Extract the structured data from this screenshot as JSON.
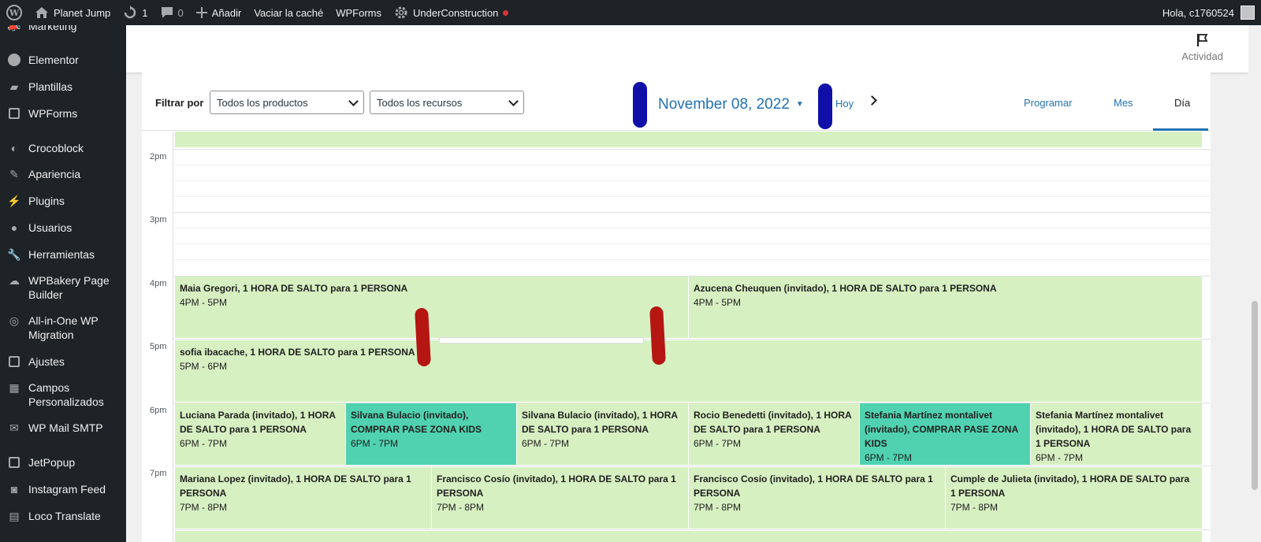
{
  "adminbar": {
    "site_name": "Planet Jump",
    "updates_count": "1",
    "comments_count": "0",
    "add_label": "Añadir",
    "clear_cache": "Vaciar la caché",
    "wpforms": "WPForms",
    "under_construction": "UnderConstruction",
    "greeting": "Hola, c1760524"
  },
  "sidebar": {
    "items": [
      {
        "label": "Marketing",
        "icon": "megaphone-icon"
      },
      {
        "label": "Elementor",
        "icon": "elementor-icon"
      },
      {
        "label": "Plantillas",
        "icon": "folder-icon"
      },
      {
        "label": "WPForms",
        "icon": "form-icon"
      },
      {
        "label": "Crocoblock",
        "icon": "crocoblock-icon"
      },
      {
        "label": "Apariencia",
        "icon": "brush-icon"
      },
      {
        "label": "Plugins",
        "icon": "plugin-icon"
      },
      {
        "label": "Usuarios",
        "icon": "user-icon"
      },
      {
        "label": "Herramientas",
        "icon": "wrench-icon"
      },
      {
        "label": "WPBakery Page Builder",
        "icon": "wpbakery-icon"
      },
      {
        "label": "All-in-One WP Migration",
        "icon": "migration-icon"
      },
      {
        "label": "Ajustes",
        "icon": "settings-icon"
      },
      {
        "label": "Campos Personalizados",
        "icon": "table-icon"
      },
      {
        "label": "WP Mail SMTP",
        "icon": "mail-icon"
      },
      {
        "label": "JetPopup",
        "icon": "jet-icon"
      },
      {
        "label": "Instagram Feed",
        "icon": "camera-icon"
      },
      {
        "label": "Loco Translate",
        "icon": "translate-icon"
      }
    ]
  },
  "topbar": {
    "activity_label": "Actividad"
  },
  "calendar": {
    "filter_label": "Filtrar por",
    "products_select": "Todos los productos",
    "resources_select": "Todos los recursos",
    "date_title": "November 08, 2022",
    "today_label": "Hoy",
    "views": [
      "Programar",
      "Mes",
      "Día"
    ],
    "active_view": "Día",
    "hours": [
      "2pm",
      "3pm",
      "4pm",
      "5pm",
      "6pm",
      "7pm"
    ],
    "events": [
      {
        "title": "Maia Gregori, 1 HORA DE SALTO para 1 PERSONA",
        "time": "4PM - 5PM",
        "type": "normal"
      },
      {
        "title": "Azucena Cheuquen (invitado), 1 HORA DE SALTO para 1 PERSONA",
        "time": "4PM - 5PM",
        "type": "normal"
      },
      {
        "title": "sofia ibacache, 1 HORA DE SALTO para 1 PERSONA",
        "time": "5PM - 6PM",
        "type": "normal"
      },
      {
        "title": "Luciana Parada (invitado), 1 HORA DE SALTO para 1 PERSONA",
        "time": "6PM - 7PM",
        "type": "normal"
      },
      {
        "title": "Silvana Bulacio (invitado), COMPRAR PASE ZONA KIDS",
        "time": "6PM - 7PM",
        "type": "kids"
      },
      {
        "title": "Silvana Bulacio (invitado), 1 HORA DE SALTO para 1 PERSONA",
        "time": "6PM - 7PM",
        "type": "normal"
      },
      {
        "title": "Rocio Benedetti (invitado), 1 HORA DE SALTO para 1 PERSONA",
        "time": "6PM - 7PM",
        "type": "normal"
      },
      {
        "title": "Stefania Martínez montalivet (invitado), COMPRAR PASE ZONA KIDS",
        "time": "6PM - 7PM",
        "type": "kids"
      },
      {
        "title": "Stefania Martínez montalivet (invitado), 1 HORA DE SALTO para 1 PERSONA",
        "time": "6PM - 7PM",
        "type": "normal"
      },
      {
        "title": "Mariana Lopez (invitado), 1 HORA DE SALTO para 1 PERSONA",
        "time": "7PM - 8PM",
        "type": "normal"
      },
      {
        "title": "Francisco Cosío (invitado), 1 HORA DE SALTO para 1 PERSONA",
        "time": "7PM - 8PM",
        "type": "normal"
      },
      {
        "title": "Francisco Cosío (invitado), 1 HORA DE SALTO para 1 PERSONA",
        "time": "7PM - 8PM",
        "type": "normal"
      },
      {
        "title": "Cumple de Julieta (invitado), 1 HORA DE SALTO para 1 PERSONA",
        "time": "7PM - 8PM",
        "type": "normal"
      }
    ]
  },
  "colors": {
    "event_normal": "#d7f0c2",
    "event_kids": "#50d2b0",
    "accent": "#2271b1",
    "admin_bg": "#1d2327"
  }
}
